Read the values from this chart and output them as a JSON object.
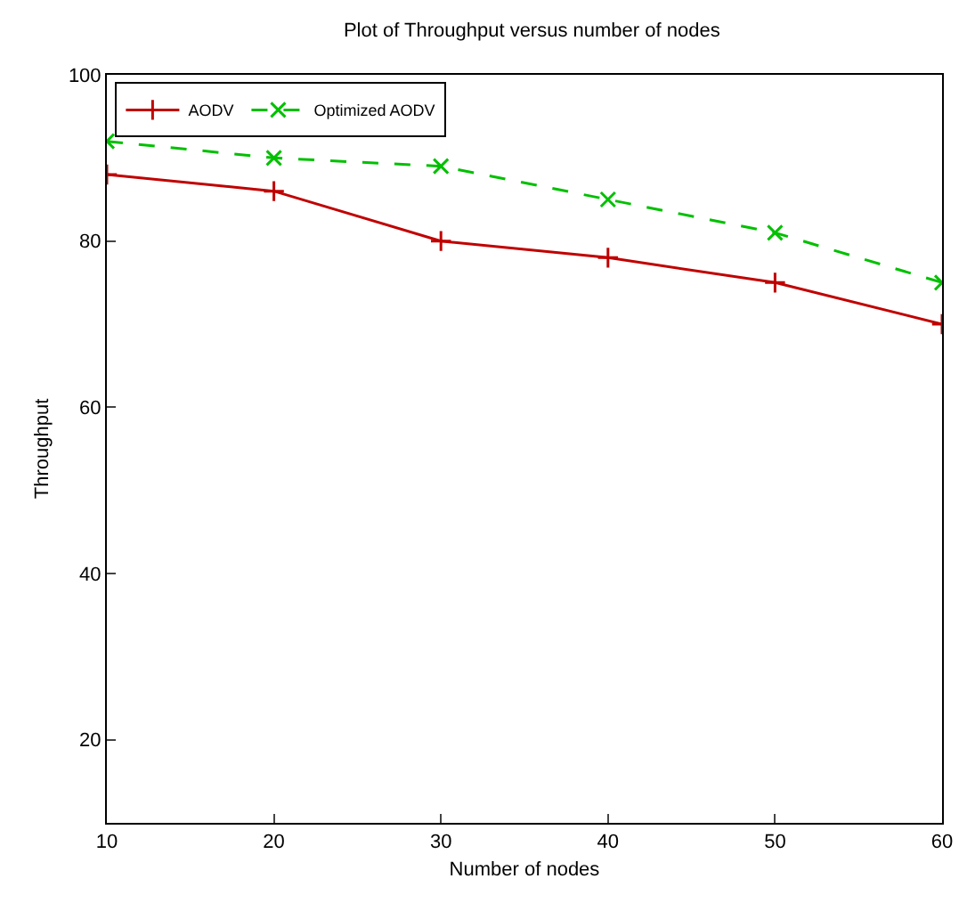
{
  "chart_data": {
    "type": "line",
    "title": "Plot of Throughput versus number of nodes",
    "xlabel": "Number of nodes",
    "ylabel": "Throughput",
    "x": [
      10,
      20,
      30,
      40,
      50,
      60
    ],
    "series": [
      {
        "name": "AODV",
        "color": "#c00000",
        "values": [
          88,
          86,
          80,
          78,
          75,
          70
        ],
        "marker": "cross",
        "line_style": "solid"
      },
      {
        "name": "Optimized AODV",
        "color": "#00c000",
        "values": [
          92,
          90,
          89,
          85,
          81,
          75
        ],
        "marker": "x",
        "line_style": "dashed"
      }
    ],
    "xlim": [
      10,
      60
    ],
    "xticks": [
      10,
      20,
      30,
      40,
      50,
      60
    ],
    "ylim": [
      10,
      100
    ],
    "yticks": [
      20,
      40,
      60,
      80,
      100
    ],
    "grid": false,
    "legend": "top left"
  }
}
